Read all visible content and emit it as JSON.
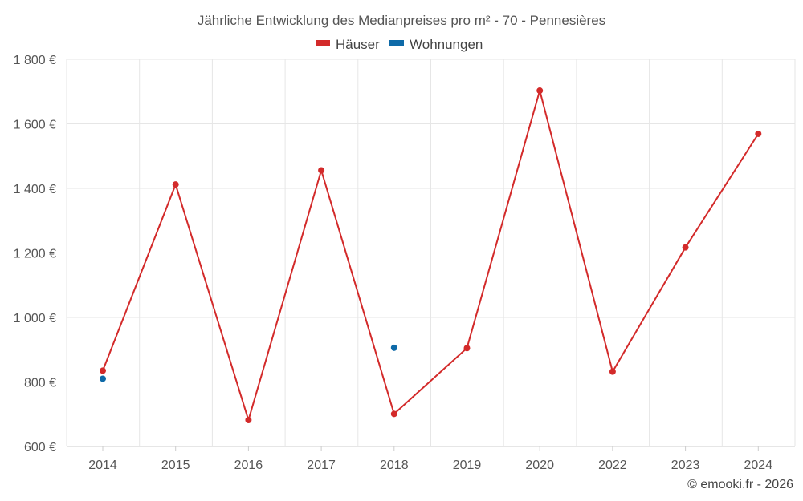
{
  "chart_data": {
    "type": "line",
    "title": "Jährliche Entwicklung des Medianpreises pro m² - 70 - Pennesières",
    "categories": [
      "2014",
      "2015",
      "2016",
      "2017",
      "2018",
      "2019",
      "2020",
      "2022",
      "2023",
      "2024"
    ],
    "y_ticks": [
      "600 €",
      "800 €",
      "1 000 €",
      "1 200 €",
      "1 400 €",
      "1 600 €",
      "1 800 €"
    ],
    "ylim": [
      600,
      1800
    ],
    "series": [
      {
        "name": "Häuser",
        "color": "#d32a2a",
        "values": [
          835,
          1412,
          682,
          1456,
          701,
          905,
          1703,
          832,
          1217,
          1569
        ]
      },
      {
        "name": "Wohnungen",
        "color": "#0e6aa8",
        "values": [
          810,
          null,
          null,
          null,
          906,
          null,
          null,
          null,
          null,
          null
        ]
      }
    ],
    "grid": true,
    "legend_position": "top-center"
  },
  "credit": "© emooki.fr - 2026"
}
